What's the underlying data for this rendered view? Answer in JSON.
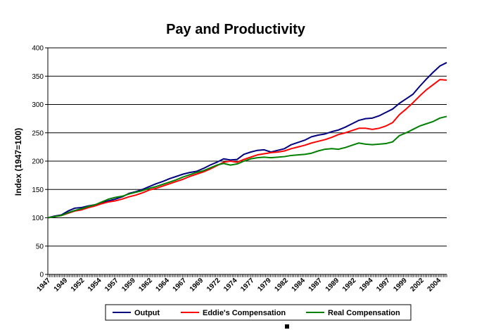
{
  "chart_data": {
    "type": "line",
    "title": "Pay and Productivity",
    "xlabel": "",
    "ylabel": "Index (1947=100)",
    "x_tick_labels": [
      "1947",
      "1949",
      "1952",
      "1954",
      "1957",
      "1959",
      "1962",
      "1964",
      "1967",
      "1969",
      "1972",
      "1974",
      "1977",
      "1979",
      "1982",
      "1984",
      "1987",
      "1989",
      "1992",
      "1994",
      "1997",
      "1999",
      "2002",
      "2004"
    ],
    "xlim": [
      1947,
      2006
    ],
    "ylim": [
      0,
      400
    ],
    "y_ticks": [
      0,
      50,
      100,
      150,
      200,
      250,
      300,
      350,
      400
    ],
    "grid": true,
    "legend_position": "bottom",
    "series": [
      {
        "name": "Output",
        "color": "#000080",
        "x": [
          1947,
          1948,
          1949,
          1950,
          1951,
          1952,
          1953,
          1954,
          1955,
          1956,
          1957,
          1958,
          1959,
          1960,
          1961,
          1962,
          1963,
          1964,
          1965,
          1966,
          1967,
          1968,
          1969,
          1970,
          1971,
          1972,
          1973,
          1974,
          1975,
          1976,
          1977,
          1978,
          1979,
          1980,
          1981,
          1982,
          1983,
          1984,
          1985,
          1986,
          1987,
          1988,
          1989,
          1990,
          1991,
          1992,
          1993,
          1994,
          1995,
          1996,
          1997,
          1998,
          1999,
          2000,
          2001,
          2002,
          2003,
          2004,
          2005,
          2006
        ],
        "values": [
          100,
          103,
          105,
          112,
          117,
          118,
          121,
          123,
          127,
          130,
          133,
          137,
          143,
          146,
          150,
          155,
          160,
          164,
          169,
          173,
          177,
          180,
          182,
          187,
          193,
          198,
          204,
          202,
          203,
          212,
          216,
          219,
          220,
          216,
          219,
          222,
          229,
          233,
          237,
          243,
          246,
          248,
          252,
          255,
          260,
          266,
          272,
          275,
          276,
          280,
          286,
          292,
          302,
          310,
          318,
          332,
          345,
          357,
          368,
          374
        ]
      },
      {
        "name": "Eddie's Compensation",
        "color": "#ff0000",
        "x": [
          1947,
          1948,
          1949,
          1950,
          1951,
          1952,
          1953,
          1954,
          1955,
          1956,
          1957,
          1958,
          1959,
          1960,
          1961,
          1962,
          1963,
          1964,
          1965,
          1966,
          1967,
          1968,
          1969,
          1970,
          1971,
          1972,
          1973,
          1974,
          1975,
          1976,
          1977,
          1978,
          1979,
          1980,
          1981,
          1982,
          1983,
          1984,
          1985,
          1986,
          1987,
          1988,
          1989,
          1990,
          1991,
          1992,
          1993,
          1994,
          1995,
          1996,
          1997,
          1998,
          1999,
          2000,
          2001,
          2002,
          2003,
          2004,
          2005,
          2006
        ],
        "values": [
          100,
          102,
          104,
          108,
          112,
          114,
          118,
          121,
          125,
          128,
          130,
          133,
          137,
          140,
          144,
          149,
          152,
          156,
          160,
          164,
          168,
          173,
          177,
          181,
          186,
          192,
          198,
          200,
          198,
          203,
          207,
          211,
          213,
          215,
          216,
          218,
          222,
          225,
          228,
          232,
          235,
          238,
          242,
          247,
          250,
          254,
          258,
          258,
          256,
          258,
          262,
          268,
          282,
          292,
          303,
          315,
          326,
          335,
          344,
          343
        ]
      },
      {
        "name": "Real Compensation",
        "color": "#008000",
        "x": [
          1947,
          1948,
          1949,
          1950,
          1951,
          1952,
          1953,
          1954,
          1955,
          1956,
          1957,
          1958,
          1959,
          1960,
          1961,
          1962,
          1963,
          1964,
          1965,
          1966,
          1967,
          1968,
          1969,
          1970,
          1971,
          1972,
          1973,
          1974,
          1975,
          1976,
          1977,
          1978,
          1979,
          1980,
          1981,
          1982,
          1983,
          1984,
          1985,
          1986,
          1987,
          1988,
          1989,
          1990,
          1991,
          1992,
          1993,
          1994,
          1995,
          1996,
          1997,
          1998,
          1999,
          2000,
          2001,
          2002,
          2003,
          2004,
          2005,
          2006
        ],
        "values": [
          100,
          102,
          104,
          109,
          113,
          116,
          120,
          123,
          128,
          133,
          136,
          138,
          142,
          145,
          148,
          152,
          155,
          159,
          163,
          167,
          172,
          176,
          180,
          183,
          188,
          193,
          196,
          193,
          195,
          200,
          204,
          206,
          207,
          206,
          207,
          208,
          210,
          211,
          212,
          214,
          218,
          221,
          222,
          221,
          224,
          228,
          232,
          230,
          229,
          230,
          231,
          234,
          245,
          250,
          256,
          262,
          266,
          270,
          276,
          279
        ]
      }
    ]
  }
}
